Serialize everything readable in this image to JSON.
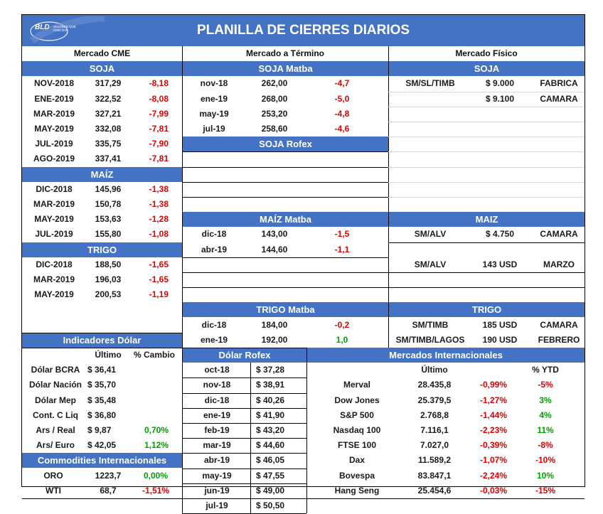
{
  "title": "PLANILLA DE CIERRES DIARIOS",
  "logo": {
    "brand": "BLD",
    "tagline": "VALORES QUE CRECEN"
  },
  "section_headers": {
    "cme": "Mercado CME",
    "termino": "Mercado a Término",
    "fisico": "Mercado Físico"
  },
  "cme": {
    "soja_label": "SOJA",
    "soja": [
      {
        "month": "NOV-2018",
        "price": "317,29",
        "change": "-8,18"
      },
      {
        "month": "ENE-2019",
        "price": "322,52",
        "change": "-8,08"
      },
      {
        "month": "MAR-2019",
        "price": "327,21",
        "change": "-7,99"
      },
      {
        "month": "MAY-2019",
        "price": "332,08",
        "change": "-7,81"
      },
      {
        "month": "JUL-2019",
        "price": "335,75",
        "change": "-7,90"
      },
      {
        "month": "AGO-2019",
        "price": "337,41",
        "change": "-7,81"
      }
    ],
    "maiz_label": "MAÍZ",
    "maiz": [
      {
        "month": "DIC-2018",
        "price": "145,96",
        "change": "-1,38"
      },
      {
        "month": "MAR-2019",
        "price": "150,78",
        "change": "-1,38"
      },
      {
        "month": "MAY-2019",
        "price": "153,63",
        "change": "-1,28"
      },
      {
        "month": "JUL-2019",
        "price": "155,80",
        "change": "-1,08"
      }
    ],
    "trigo_label": "TRIGO",
    "trigo": [
      {
        "month": "DIC-2018",
        "price": "188,50",
        "change": "-1,65"
      },
      {
        "month": "MAR-2019",
        "price": "196,03",
        "change": "-1,65"
      },
      {
        "month": "MAY-2019",
        "price": "200,53",
        "change": "-1,19"
      }
    ]
  },
  "termino": {
    "soja_matba_label": "SOJA Matba",
    "soja_matba": [
      {
        "month": "nov-18",
        "price": "262,00",
        "change": "-4,7"
      },
      {
        "month": "ene-19",
        "price": "268,00",
        "change": "-5,0"
      },
      {
        "month": "may-19",
        "price": "253,20",
        "change": "-4,8"
      },
      {
        "month": "jul-19",
        "price": "258,60",
        "change": "-4,6"
      }
    ],
    "soja_rofex_label": "SOJA Rofex",
    "maiz_matba_label": "MAÍZ Matba",
    "maiz_matba": [
      {
        "month": "dic-18",
        "price": "143,00",
        "change": "-1,5"
      },
      {
        "month": "abr-19",
        "price": "144,60",
        "change": "-1,1"
      }
    ],
    "trigo_matba_label": "TRIGO Matba",
    "trigo_matba": [
      {
        "month": "dic-18",
        "price": "184,00",
        "change": "-0,2"
      },
      {
        "month": "ene-19",
        "price": "192,00",
        "change": "1,0"
      }
    ]
  },
  "fisico": {
    "soja_label": "SOJA",
    "soja": [
      {
        "place": "SM/SL/TIMB",
        "price": "$ 9.000",
        "buyer": "FABRICA"
      },
      {
        "place": "",
        "price": "$ 9.100",
        "buyer": "CAMARA"
      }
    ],
    "maiz_label": "MAIZ",
    "maiz": [
      {
        "place": "SM/ALV",
        "price": "$ 4.750",
        "buyer": "CAMARA"
      },
      {
        "place": "SM/ALV",
        "price": "143 USD",
        "buyer": "MARZO"
      }
    ],
    "trigo_label": "TRIGO",
    "trigo": [
      {
        "place": "SM/TIMB",
        "price": "185 USD",
        "buyer": "CAMARA"
      },
      {
        "place": "SM/TIMB/LAGOS",
        "price": "190 USD",
        "buyer": "FEBRERO"
      }
    ]
  },
  "dolar": {
    "label": "Indicadores Dólar",
    "col_ultimo": "Último",
    "col_cambio": "% Cambio",
    "rows": [
      {
        "name": "Dólar BCRA",
        "value": "$ 36,41",
        "change": ""
      },
      {
        "name": "Dólar Nación",
        "value": "$ 35,70",
        "change": ""
      },
      {
        "name": "Dólar Mep",
        "value": "$ 35,48",
        "change": ""
      },
      {
        "name": "Cont. C Liq",
        "value": "$ 36,80",
        "change": ""
      },
      {
        "name": "Ars / Real",
        "value": "$ 9,87",
        "change": "0,70%"
      },
      {
        "name": "Ars/ Euro",
        "value": "$ 42,05",
        "change": "1,12%"
      }
    ]
  },
  "commodities": {
    "label": "Commodities Internacionales",
    "rows": [
      {
        "name": "ORO",
        "value": "1223,7",
        "change": "0,00%"
      },
      {
        "name": "WTI",
        "value": "68,7",
        "change": "-1,51%"
      }
    ]
  },
  "dolar_rofex": {
    "label": "Dólar Rofex",
    "rows": [
      {
        "month": "oct-18",
        "value": "$ 37,28"
      },
      {
        "month": "nov-18",
        "value": "$ 38,91"
      },
      {
        "month": "dic-18",
        "value": "$ 40,26"
      },
      {
        "month": "ene-19",
        "value": "$ 41,90"
      },
      {
        "month": "feb-19",
        "value": "$ 43,20"
      },
      {
        "month": "mar-19",
        "value": "$ 44,60"
      },
      {
        "month": "abr-19",
        "value": "$ 46,05"
      },
      {
        "month": "may-19",
        "value": "$ 47,55"
      },
      {
        "month": "jun-19",
        "value": "$ 49,00"
      },
      {
        "month": "jul-19",
        "value": "$ 50,50"
      }
    ]
  },
  "internacionales": {
    "label": "Mercados Internacionales",
    "col_ultimo": "Último",
    "col_ytd": "% YTD",
    "rows": [
      {
        "name": "Merval",
        "value": "28.435,8",
        "change": "-0,99%",
        "ytd": "-5%"
      },
      {
        "name": "Dow Jones",
        "value": "25.379,5",
        "change": "-1,27%",
        "ytd": "3%"
      },
      {
        "name": "S&P 500",
        "value": "2.768,8",
        "change": "-1,44%",
        "ytd": "4%"
      },
      {
        "name": "Nasdaq 100",
        "value": "7.116,1",
        "change": "-2,23%",
        "ytd": "11%"
      },
      {
        "name": "FTSE 100",
        "value": "7.027,0",
        "change": "-0,39%",
        "ytd": "-8%"
      },
      {
        "name": "Dax",
        "value": "11.589,2",
        "change": "-1,07%",
        "ytd": "-10%"
      },
      {
        "name": "Bovespa",
        "value": "83.847,1",
        "change": "-2,24%",
        "ytd": "10%"
      },
      {
        "name": "Hang Seng",
        "value": "25.454,6",
        "change": "-0,03%",
        "ytd": "-15%"
      }
    ]
  },
  "colors": {
    "header_blue": "#4472c4",
    "negative": "#e00000",
    "positive": "#00a000"
  }
}
